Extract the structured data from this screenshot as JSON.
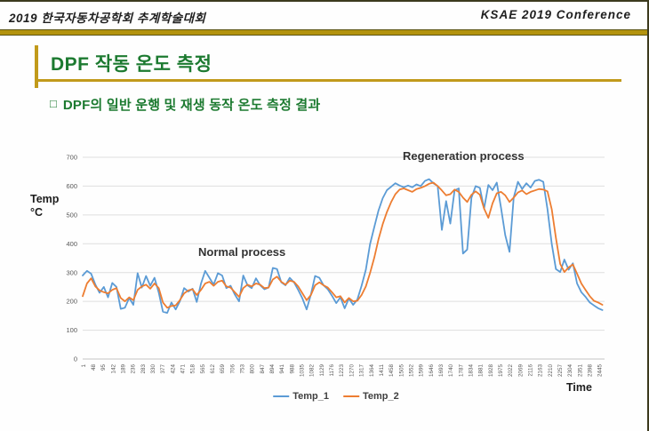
{
  "header": {
    "left": "2019 한국자동차공학회  추계학술대회",
    "right": "KSAE  2019   Conference"
  },
  "title": "DPF 작동 온도 측정",
  "bullet": {
    "marker": "□",
    "text": "DPF의 일반 운행 및 재생 동작 온도 측정 결과"
  },
  "colors": {
    "title_green": "#1c7a30",
    "gold_line": "#c19a1b",
    "gold_band": "#b3930e",
    "frame_line": "#3c3a1e",
    "grid_line": "#dedede",
    "axis_line": "#c4c4c4",
    "tick_text": "#595959",
    "temp1_blue": "#5b9bd5",
    "temp2_orange": "#ed7d31"
  },
  "chart_data": {
    "type": "line",
    "title": "",
    "xlabel": "Time",
    "ylabel": "Temp °C",
    "ylabel_lines": [
      "Temp",
      "°C"
    ],
    "ylim": [
      0,
      700
    ],
    "y_ticks": [
      0,
      100,
      200,
      300,
      400,
      500,
      600,
      700
    ],
    "x_range": [
      1,
      2470
    ],
    "x_tick_step": 47,
    "x_tick_labels": [
      1,
      48,
      95,
      142,
      189,
      236,
      283,
      330,
      377,
      424,
      471,
      518,
      565,
      612,
      659,
      706,
      753,
      800,
      847,
      894,
      941,
      988,
      1035,
      1082,
      1129,
      1176,
      1223,
      1270,
      1317,
      1364,
      1411,
      1458,
      1505,
      1552,
      1599,
      1646,
      1693,
      1740,
      1787,
      1834,
      1881,
      1928,
      1975,
      2022,
      2069,
      2116,
      2163,
      2210,
      2257,
      2304,
      2351,
      2398,
      2445
    ],
    "annotations": [
      {
        "text": "Normal process",
        "x": 700,
        "y": 330
      },
      {
        "text": "Regeneration process",
        "x": 1700,
        "y": 660
      }
    ],
    "legend_position": "bottom",
    "grid": true,
    "x_step": 20,
    "series": [
      {
        "name": "Temp_1",
        "color": "#5b9bd5",
        "values": [
          290,
          306,
          296,
          258,
          230,
          250,
          214,
          264,
          250,
          174,
          178,
          212,
          188,
          298,
          248,
          288,
          254,
          282,
          230,
          164,
          160,
          196,
          172,
          200,
          246,
          234,
          244,
          198,
          262,
          306,
          282,
          258,
          298,
          290,
          246,
          254,
          224,
          200,
          290,
          256,
          246,
          280,
          256,
          242,
          248,
          316,
          312,
          266,
          256,
          282,
          266,
          240,
          210,
          172,
          224,
          288,
          282,
          256,
          242,
          220,
          194,
          214,
          176,
          210,
          188,
          206,
          254,
          310,
          398,
          458,
          515,
          558,
          586,
          598,
          610,
          602,
          596,
          602,
          596,
          606,
          600,
          618,
          624,
          610,
          600,
          448,
          548,
          470,
          585,
          592,
          366,
          380,
          560,
          600,
          594,
          522,
          604,
          586,
          612,
          524,
          430,
          372,
          560,
          615,
          590,
          610,
          595,
          618,
          622,
          615,
          520,
          400,
          312,
          302,
          345,
          310,
          332,
          262,
          232,
          216,
          196,
          186,
          176,
          170
        ]
      },
      {
        "name": "Temp_2",
        "color": "#ed7d31",
        "values": [
          218,
          262,
          280,
          252,
          238,
          232,
          228,
          240,
          246,
          212,
          200,
          214,
          204,
          240,
          252,
          258,
          244,
          262,
          246,
          196,
          178,
          184,
          186,
          204,
          228,
          238,
          242,
          222,
          240,
          262,
          268,
          254,
          268,
          272,
          252,
          248,
          232,
          216,
          246,
          258,
          252,
          262,
          258,
          246,
          248,
          276,
          286,
          268,
          258,
          272,
          268,
          252,
          228,
          204,
          222,
          256,
          266,
          256,
          248,
          232,
          214,
          218,
          196,
          212,
          200,
          202,
          222,
          252,
          298,
          352,
          415,
          468,
          510,
          545,
          572,
          588,
          592,
          586,
          580,
          590,
          594,
          600,
          608,
          612,
          600,
          585,
          568,
          572,
          588,
          580,
          560,
          545,
          570,
          582,
          570,
          522,
          490,
          540,
          575,
          580,
          568,
          545,
          560,
          578,
          585,
          572,
          580,
          585,
          590,
          588,
          582,
          520,
          420,
          330,
          302,
          318,
          328,
          296,
          262,
          240,
          218,
          202,
          196,
          188
        ]
      }
    ]
  }
}
